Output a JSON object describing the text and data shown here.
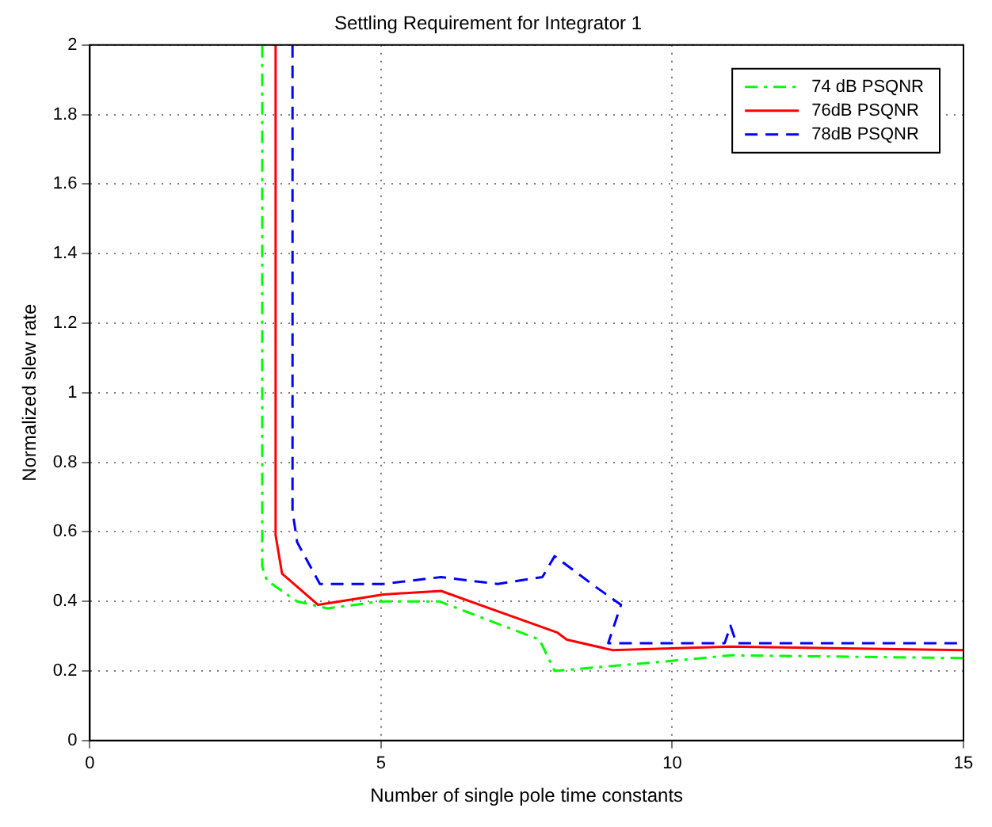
{
  "chart_data": {
    "type": "line",
    "title": "Settling Requirement for Integrator 1",
    "xlabel": "Number of single pole time constants",
    "ylabel": "Normalized slew rate",
    "xlim": [
      0,
      15
    ],
    "xticks": [
      0,
      5,
      10,
      15
    ],
    "ylim": [
      0,
      2
    ],
    "yticks": [
      0,
      0.2,
      0.4,
      0.6,
      0.8,
      1,
      1.2,
      1.4,
      1.6,
      1.8,
      2
    ],
    "grid": true,
    "legend": "top right",
    "marker": "none",
    "series": [
      {
        "name": "74 dB PSQNR",
        "color": "#00ff00",
        "line_style": "dashdot",
        "x": [
          2.96,
          2.96,
          3.04,
          3.56,
          4.08,
          5.0,
          6.0,
          7.72,
          7.98,
          10.06,
          11.0,
          15
        ],
        "values": [
          2,
          0.5,
          0.46,
          0.4,
          0.38,
          0.4,
          0.4,
          0.29,
          0.2,
          0.23,
          0.245,
          0.237
        ]
      },
      {
        "name": "76dB PSQNR",
        "color": "#ff0000",
        "line_style": "solid",
        "x": [
          3.19,
          3.19,
          3.3,
          3.92,
          5.04,
          6.03,
          8.03,
          8.19,
          8.97,
          11.0,
          15
        ],
        "values": [
          2,
          0.59,
          0.48,
          0.39,
          0.42,
          0.43,
          0.31,
          0.29,
          0.26,
          0.27,
          0.26
        ]
      },
      {
        "name": "78dB PSQNR",
        "color": "#0000ff",
        "line_style": "dashed",
        "x": [
          3.48,
          3.48,
          3.56,
          3.95,
          5.04,
          6.03,
          7.0,
          7.77,
          7.98,
          8.7,
          9.12,
          8.9,
          8.95,
          10.9,
          11.0,
          11.1,
          15
        ],
        "values": [
          2,
          0.66,
          0.57,
          0.45,
          0.45,
          0.47,
          0.45,
          0.47,
          0.53,
          0.44,
          0.39,
          0.28,
          0.28,
          0.28,
          0.33,
          0.28,
          0.28
        ]
      }
    ]
  }
}
